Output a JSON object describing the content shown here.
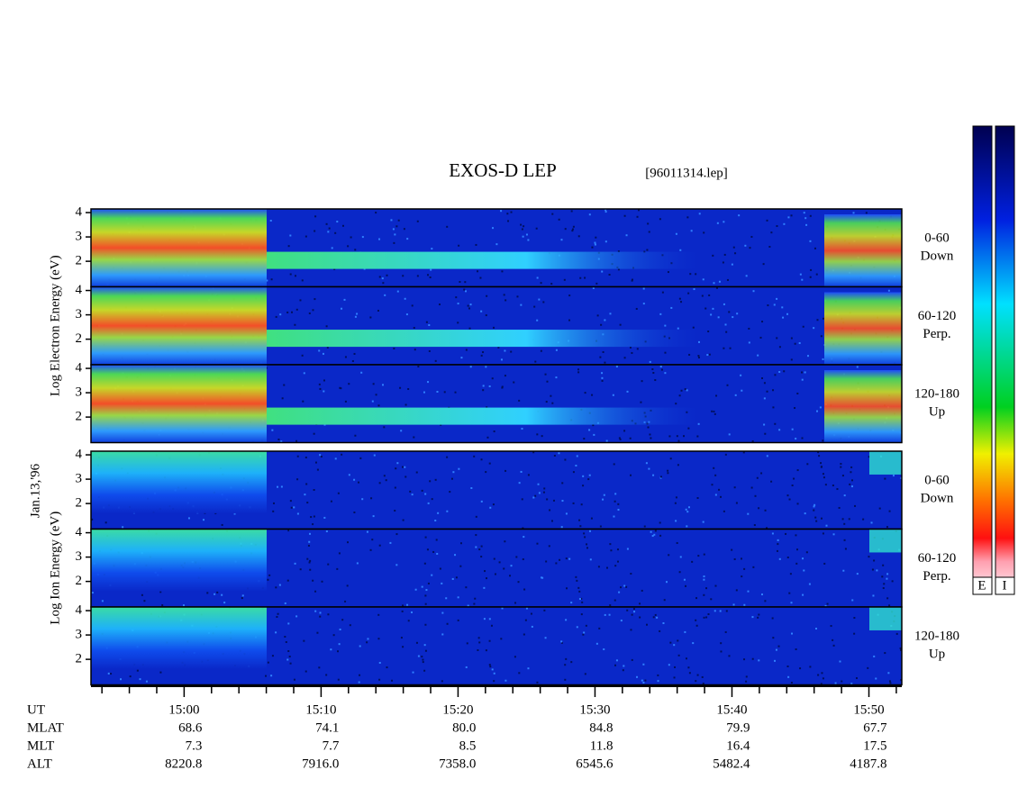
{
  "chart_data": {
    "type": "spectrogram",
    "title": "EXOS-D LEP",
    "subtitle": "[96011314.lep]",
    "date_label": "Jan.13,'96",
    "xlim": [
      893.2,
      952.4
    ],
    "xticks": [
      {
        "value": 900,
        "label": "15:00"
      },
      {
        "value": 910,
        "label": "15:10"
      },
      {
        "value": 920,
        "label": "15:20"
      },
      {
        "value": 930,
        "label": "15:30"
      },
      {
        "value": 940,
        "label": "15:40"
      },
      {
        "value": 950,
        "label": "15:50"
      }
    ],
    "xminorticks": [
      894,
      896,
      898,
      902,
      904,
      906,
      908,
      912,
      914,
      916,
      918,
      922,
      924,
      926,
      928,
      932,
      934,
      936,
      938,
      942,
      944,
      946,
      948,
      952
    ],
    "ylim": [
      0.95,
      4.15
    ],
    "yticks": [
      2,
      3,
      4
    ],
    "groups": [
      {
        "ylabel": "Log Electron Energy (eV)",
        "kind": "electron",
        "panels": [
          [
            "0-60",
            "Down"
          ],
          [
            "60-120",
            "Perp."
          ],
          [
            "120-180",
            "Up"
          ]
        ]
      },
      {
        "ylabel": "Log Ion Energy (eV)",
        "kind": "ion",
        "panels": [
          [
            "0-60",
            "Down"
          ],
          [
            "60-120",
            "Perp."
          ],
          [
            "120-180",
            "Up"
          ]
        ]
      }
    ],
    "orbit_rows": [
      {
        "name": "UT"
      },
      {
        "name": "MLAT",
        "values": [
          "68.6",
          "74.1",
          "80.0",
          "84.8",
          "79.9",
          "67.7"
        ]
      },
      {
        "name": "MLT",
        "values": [
          "7.3",
          "7.7",
          "8.5",
          "11.8",
          "16.4",
          "17.5"
        ]
      },
      {
        "name": "ALT",
        "values": [
          "8220.8",
          "7916.0",
          "7358.0",
          "6545.6",
          "5482.4",
          "4187.8"
        ]
      }
    ],
    "colorbars": [
      "E",
      "I"
    ]
  }
}
